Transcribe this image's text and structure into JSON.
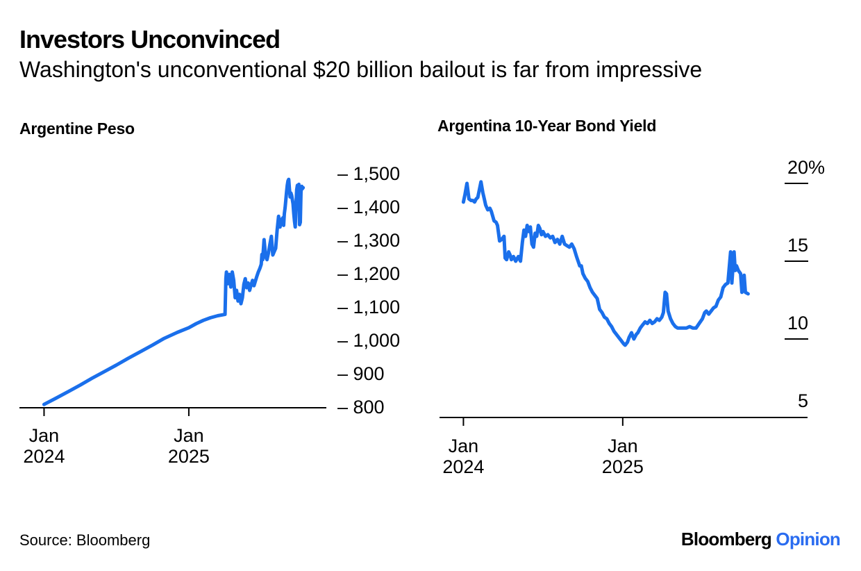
{
  "header": {
    "title": "Investors Unconvinced",
    "subtitle": "Washington's unconventional $20 billion bailout is far from impressive"
  },
  "footer": {
    "source": "Source: Bloomberg",
    "logo": {
      "brand": "Bloomberg",
      "suffix": "Opinion"
    }
  },
  "colors": {
    "line": "#1A6FEB",
    "logo_suffix": "#2A6CF0",
    "axis": "#000000",
    "text": "#000000"
  },
  "chart_data": [
    {
      "type": "line",
      "title": "Argentine Peso",
      "xlabel": "",
      "ylabel": "",
      "grid": false,
      "legend_position": "none",
      "xlim": [
        2023.83,
        2025.95
      ],
      "ylim": [
        800,
        1500
      ],
      "y_tick_style": "dash-before-label",
      "tick_dash": "–",
      "x_ticks": [
        {
          "t": 2024.0,
          "line1": "Jan",
          "line2": "2024"
        },
        {
          "t": 2025.0,
          "line1": "Jan",
          "line2": "2025"
        }
      ],
      "y_ticks": [
        {
          "value": 800,
          "label": "800"
        },
        {
          "value": 900,
          "label": "900"
        },
        {
          "value": 1000,
          "label": "1,000"
        },
        {
          "value": 1100,
          "label": "1,100"
        },
        {
          "value": 1200,
          "label": "1,200"
        },
        {
          "value": 1300,
          "label": "1,300"
        },
        {
          "value": 1400,
          "label": "1,400"
        },
        {
          "value": 1500,
          "label": "1,500"
        }
      ],
      "series": [
        {
          "points": [
            [
              2024.0,
              808
            ],
            [
              2024.08,
              826
            ],
            [
              2024.17,
              847
            ],
            [
              2024.25,
              866
            ],
            [
              2024.33,
              886
            ],
            [
              2024.42,
              907
            ],
            [
              2024.5,
              926
            ],
            [
              2024.58,
              946
            ],
            [
              2024.67,
              967
            ],
            [
              2024.75,
              986
            ],
            [
              2024.83,
              1006
            ],
            [
              2024.92,
              1024
            ],
            [
              2025.0,
              1038
            ],
            [
              2025.05,
              1050
            ],
            [
              2025.1,
              1060
            ],
            [
              2025.15,
              1068
            ],
            [
              2025.2,
              1074
            ],
            [
              2025.25,
              1078
            ],
            [
              2025.256,
              1185
            ],
            [
              2025.26,
              1205
            ],
            [
              2025.27,
              1170
            ],
            [
              2025.28,
              1198
            ],
            [
              2025.29,
              1160
            ],
            [
              2025.3,
              1205
            ],
            [
              2025.31,
              1180
            ],
            [
              2025.32,
              1128
            ],
            [
              2025.33,
              1150
            ],
            [
              2025.34,
              1118
            ],
            [
              2025.35,
              1138
            ],
            [
              2025.36,
              1110
            ],
            [
              2025.37,
              1128
            ],
            [
              2025.38,
              1168
            ],
            [
              2025.39,
              1185
            ],
            [
              2025.4,
              1158
            ],
            [
              2025.41,
              1172
            ],
            [
              2025.42,
              1150
            ],
            [
              2025.43,
              1166
            ],
            [
              2025.44,
              1180
            ],
            [
              2025.45,
              1164
            ],
            [
              2025.46,
              1178
            ],
            [
              2025.47,
              1192
            ],
            [
              2025.48,
              1205
            ],
            [
              2025.49,
              1215
            ],
            [
              2025.5,
              1228
            ],
            [
              2025.505,
              1258
            ],
            [
              2025.51,
              1242
            ],
            [
              2025.52,
              1302
            ],
            [
              2025.525,
              1278
            ],
            [
              2025.53,
              1252
            ],
            [
              2025.54,
              1242
            ],
            [
              2025.55,
              1262
            ],
            [
              2025.56,
              1288
            ],
            [
              2025.57,
              1312
            ],
            [
              2025.575,
              1285
            ],
            [
              2025.58,
              1256
            ],
            [
              2025.59,
              1266
            ],
            [
              2025.6,
              1276
            ],
            [
              2025.61,
              1330
            ],
            [
              2025.62,
              1372
            ],
            [
              2025.625,
              1352
            ],
            [
              2025.63,
              1340
            ],
            [
              2025.64,
              1362
            ],
            [
              2025.65,
              1368
            ],
            [
              2025.655,
              1345
            ],
            [
              2025.66,
              1380
            ],
            [
              2025.665,
              1398
            ],
            [
              2025.67,
              1420
            ],
            [
              2025.675,
              1445
            ],
            [
              2025.68,
              1465
            ],
            [
              2025.685,
              1478
            ],
            [
              2025.69,
              1483
            ],
            [
              2025.695,
              1455
            ],
            [
              2025.7,
              1430
            ],
            [
              2025.705,
              1442
            ],
            [
              2025.71,
              1435
            ],
            [
              2025.72,
              1410
            ],
            [
              2025.725,
              1380
            ],
            [
              2025.73,
              1358
            ],
            [
              2025.735,
              1340
            ],
            [
              2025.74,
              1402
            ],
            [
              2025.745,
              1452
            ],
            [
              2025.75,
              1465
            ],
            [
              2025.755,
              1440
            ],
            [
              2025.76,
              1468
            ],
            [
              2025.765,
              1347
            ],
            [
              2025.77,
              1354
            ],
            [
              2025.775,
              1445
            ],
            [
              2025.78,
              1462
            ],
            [
              2025.785,
              1455
            ],
            [
              2025.79,
              1458
            ]
          ]
        }
      ]
    },
    {
      "type": "line",
      "title": "Argentina 10-Year Bond Yield",
      "xlabel": "",
      "ylabel": "",
      "grid": false,
      "legend_position": "none",
      "xlim": [
        2023.85,
        2026.16
      ],
      "ylim": [
        5,
        20
      ],
      "y_tick_style": "underline-below-label",
      "tick_dash": "–",
      "x_ticks": [
        {
          "t": 2024.0,
          "line1": "Jan",
          "line2": "2024"
        },
        {
          "t": 2025.0,
          "line1": "Jan",
          "line2": "2025"
        }
      ],
      "y_ticks": [
        {
          "value": 5,
          "label": "5"
        },
        {
          "value": 10,
          "label": "10"
        },
        {
          "value": 15,
          "label": "15"
        },
        {
          "value": 20,
          "label": "20",
          "suffix": "%"
        }
      ],
      "series": [
        {
          "points": [
            [
              2024.0,
              18.8
            ],
            [
              2024.01,
              19.3
            ],
            [
              2024.022,
              20.0
            ],
            [
              2024.035,
              19.0
            ],
            [
              2024.048,
              18.9
            ],
            [
              2024.06,
              18.9
            ],
            [
              2024.07,
              18.8
            ],
            [
              2024.08,
              19.0
            ],
            [
              2024.09,
              19.1
            ],
            [
              2024.1,
              19.6
            ],
            [
              2024.11,
              20.1
            ],
            [
              2024.122,
              19.4
            ],
            [
              2024.131,
              19.0
            ],
            [
              2024.14,
              18.6
            ],
            [
              2024.153,
              18.3
            ],
            [
              2024.166,
              18.4
            ],
            [
              2024.175,
              18.2
            ],
            [
              2024.192,
              17.6
            ],
            [
              2024.205,
              17.5
            ],
            [
              2024.214,
              17.3
            ],
            [
              2024.227,
              16.3
            ],
            [
              2024.24,
              16.4
            ],
            [
              2024.255,
              16.6
            ],
            [
              2024.262,
              15.2
            ],
            [
              2024.271,
              15.1
            ],
            [
              2024.284,
              15.6
            ],
            [
              2024.293,
              15.4
            ],
            [
              2024.301,
              15.1
            ],
            [
              2024.314,
              15.3
            ],
            [
              2024.328,
              15.0
            ],
            [
              2024.345,
              15.3
            ],
            [
              2024.358,
              15.0
            ],
            [
              2024.37,
              16.2
            ],
            [
              2024.38,
              17.0
            ],
            [
              2024.39,
              16.6
            ],
            [
              2024.4,
              17.3
            ],
            [
              2024.41,
              16.9
            ],
            [
              2024.42,
              17.2
            ],
            [
              2024.43,
              16.1
            ],
            [
              2024.44,
              15.9
            ],
            [
              2024.45,
              16.8
            ],
            [
              2024.46,
              16.6
            ],
            [
              2024.47,
              17.3
            ],
            [
              2024.48,
              17.1
            ],
            [
              2024.49,
              16.7
            ],
            [
              2024.5,
              16.9
            ],
            [
              2024.515,
              16.6
            ],
            [
              2024.53,
              16.7
            ],
            [
              2024.545,
              16.5
            ],
            [
              2024.56,
              16.6
            ],
            [
              2024.575,
              16.2
            ],
            [
              2024.59,
              16.4
            ],
            [
              2024.605,
              16.1
            ],
            [
              2024.62,
              16.6
            ],
            [
              2024.635,
              16.1
            ],
            [
              2024.65,
              16.0
            ],
            [
              2024.665,
              15.9
            ],
            [
              2024.68,
              16.1
            ],
            [
              2024.695,
              15.8
            ],
            [
              2024.71,
              15.3
            ],
            [
              2024.72,
              15.0
            ],
            [
              2024.73,
              14.7
            ],
            [
              2024.74,
              14.7
            ],
            [
              2024.75,
              14.2
            ],
            [
              2024.765,
              13.9
            ],
            [
              2024.78,
              13.7
            ],
            [
              2024.795,
              13.3
            ],
            [
              2024.81,
              13.0
            ],
            [
              2024.825,
              12.8
            ],
            [
              2024.84,
              12.6
            ],
            [
              2024.855,
              11.9
            ],
            [
              2024.87,
              11.7
            ],
            [
              2024.885,
              11.4
            ],
            [
              2024.9,
              11.3
            ],
            [
              2024.915,
              11.0
            ],
            [
              2024.93,
              10.8
            ],
            [
              2024.945,
              10.5
            ],
            [
              2024.96,
              10.3
            ],
            [
              2024.975,
              10.1
            ],
            [
              2024.99,
              9.9
            ],
            [
              2025.005,
              9.7
            ],
            [
              2025.015,
              9.6
            ],
            [
              2025.03,
              9.8
            ],
            [
              2025.04,
              10.1
            ],
            [
              2025.055,
              10.4
            ],
            [
              2025.07,
              10.0
            ],
            [
              2025.085,
              10.3
            ],
            [
              2025.095,
              10.4
            ],
            [
              2025.11,
              10.7
            ],
            [
              2025.125,
              10.9
            ],
            [
              2025.14,
              11.1
            ],
            [
              2025.155,
              11.0
            ],
            [
              2025.17,
              11.2
            ],
            [
              2025.185,
              11.0
            ],
            [
              2025.2,
              11.1
            ],
            [
              2025.215,
              11.3
            ],
            [
              2025.23,
              11.2
            ],
            [
              2025.245,
              11.4
            ],
            [
              2025.255,
              11.7
            ],
            [
              2025.266,
              13.0
            ],
            [
              2025.275,
              12.9
            ],
            [
              2025.285,
              11.8
            ],
            [
              2025.3,
              11.3
            ],
            [
              2025.315,
              11.0
            ],
            [
              2025.33,
              10.8
            ],
            [
              2025.345,
              10.7
            ],
            [
              2025.36,
              10.7
            ],
            [
              2025.38,
              10.7
            ],
            [
              2025.4,
              10.7
            ],
            [
              2025.42,
              10.8
            ],
            [
              2025.44,
              10.7
            ],
            [
              2025.46,
              10.7
            ],
            [
              2025.48,
              11.0
            ],
            [
              2025.5,
              11.3
            ],
            [
              2025.515,
              11.7
            ],
            [
              2025.525,
              11.8
            ],
            [
              2025.54,
              11.6
            ],
            [
              2025.555,
              11.8
            ],
            [
              2025.57,
              12.0
            ],
            [
              2025.585,
              12.1
            ],
            [
              2025.6,
              12.5
            ],
            [
              2025.615,
              12.7
            ],
            [
              2025.63,
              13.3
            ],
            [
              2025.645,
              13.5
            ],
            [
              2025.66,
              13.6
            ],
            [
              2025.677,
              15.6
            ],
            [
              2025.685,
              13.6
            ],
            [
              2025.699,
              15.6
            ],
            [
              2025.706,
              14.4
            ],
            [
              2025.714,
              14.7
            ],
            [
              2025.726,
              14.4
            ],
            [
              2025.74,
              14.2
            ],
            [
              2025.748,
              13.0
            ],
            [
              2025.762,
              14.1
            ],
            [
              2025.77,
              13.0
            ],
            [
              2025.787,
              12.9
            ]
          ]
        }
      ]
    }
  ]
}
